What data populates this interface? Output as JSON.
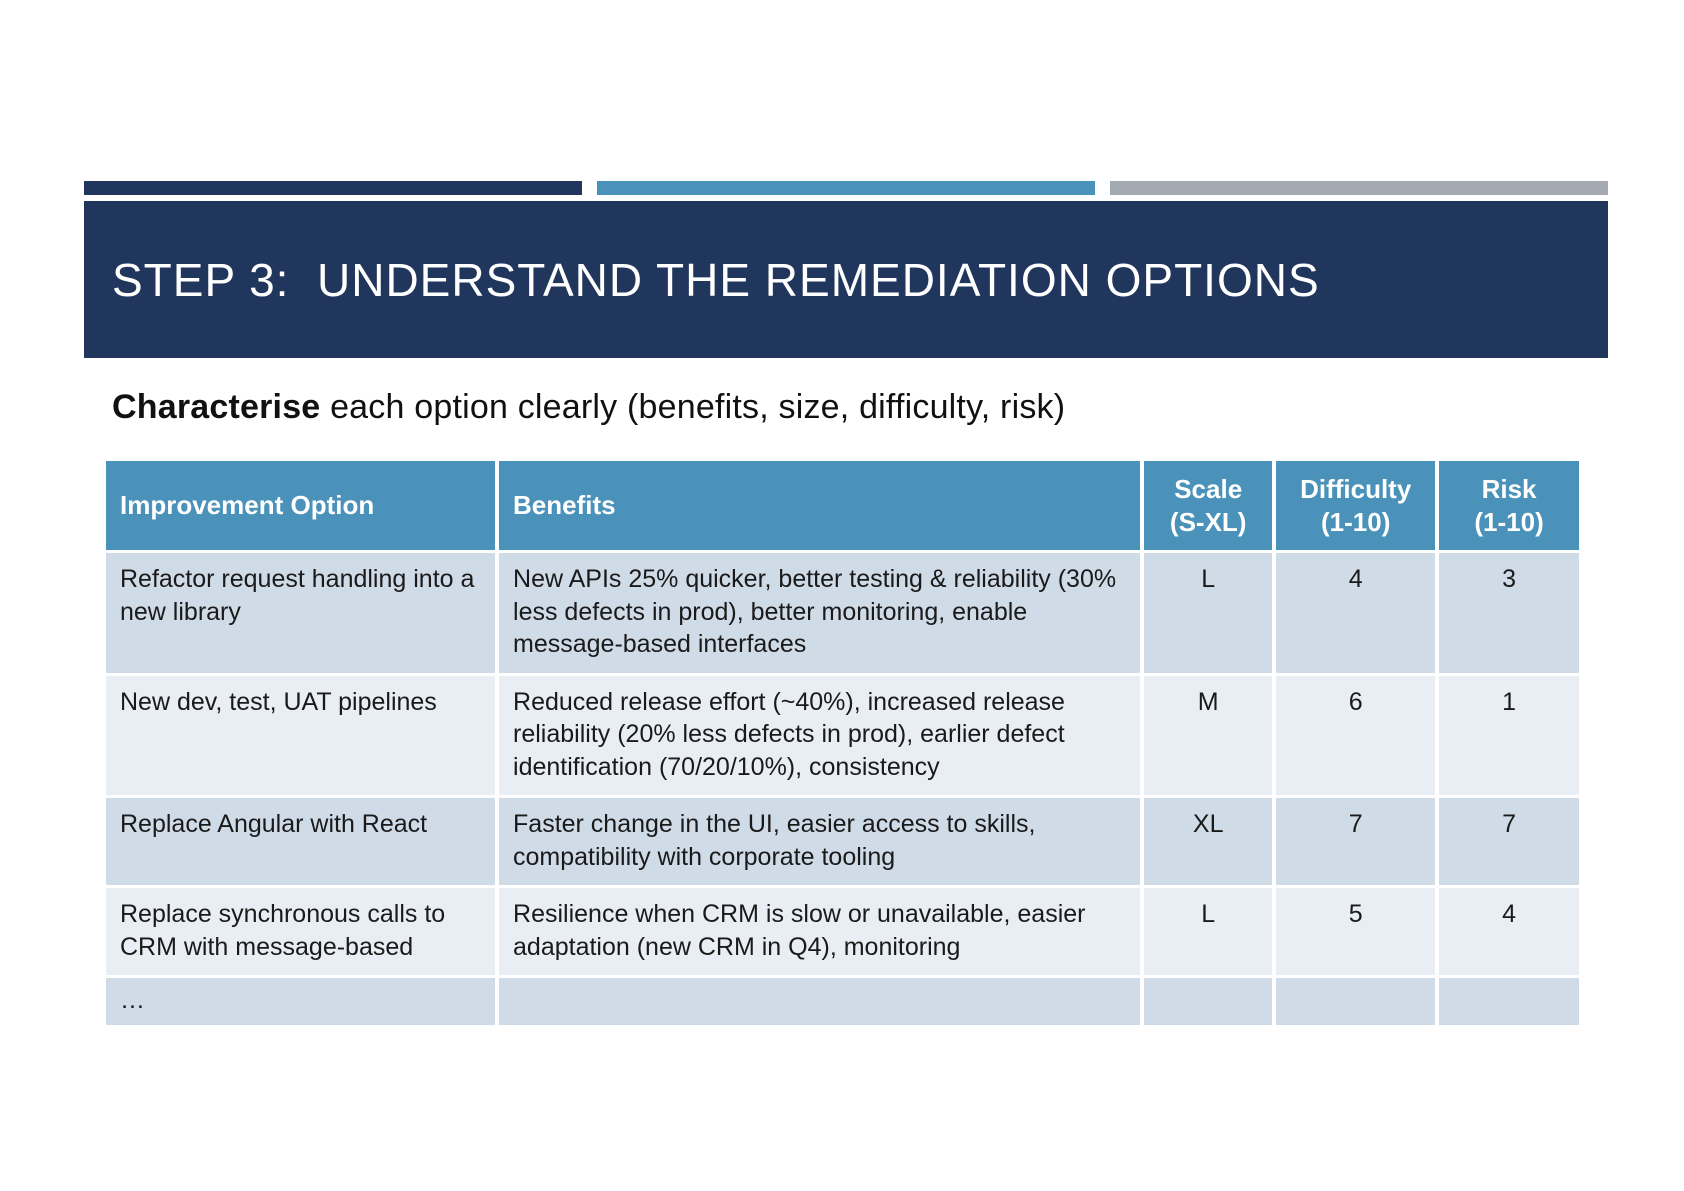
{
  "slide": {
    "title": "STEP 3:  UNDERSTAND THE REMEDIATION OPTIONS",
    "subtitle": {
      "keyword": "Characterise",
      "rest": " each option clearly (benefits, size, difficulty, risk)"
    }
  },
  "colors": {
    "accent_navy": "#20365C",
    "accent_steel_blue": "#4A92BA",
    "accent_gray": "#A3AAB2",
    "header_bg": "#4A92BA",
    "row_dark": "#D0DBE8",
    "row_light": "#E9EEF5",
    "title_text": "#FFFFFF",
    "body_text": "#1A1A1A"
  },
  "table": {
    "headers": [
      {
        "label": "Improvement Option",
        "sub": ""
      },
      {
        "label": "Benefits",
        "sub": ""
      },
      {
        "label": "Scale",
        "sub": "(S-XL)"
      },
      {
        "label": "Difficulty",
        "sub": "(1-10)"
      },
      {
        "label": "Risk",
        "sub": "(1-10)"
      }
    ],
    "rows": [
      {
        "option": "Refactor request handling into a new library",
        "benefits": "New APIs 25% quicker, better testing & reliability (30% less defects in prod), better monitoring, enable message-based interfaces",
        "scale": "L",
        "difficulty": "4",
        "risk": "3"
      },
      {
        "option": "New dev, test, UAT pipelines",
        "benefits": "Reduced release effort (~40%), increased release reliability (20% less defects in prod), earlier defect identification (70/20/10%), consistency",
        "scale": "M",
        "difficulty": "6",
        "risk": "1"
      },
      {
        "option": "Replace Angular with React",
        "benefits": "Faster change in the UI, easier access to skills, compatibility with corporate tooling",
        "scale": "XL",
        "difficulty": "7",
        "risk": "7"
      },
      {
        "option": "Replace synchronous calls to CRM with message-based",
        "benefits": "Resilience when CRM is slow or unavailable, easier adaptation (new CRM in Q4), monitoring",
        "scale": "L",
        "difficulty": "5",
        "risk": "4"
      },
      {
        "option": "…",
        "benefits": "",
        "scale": "",
        "difficulty": "",
        "risk": ""
      }
    ]
  }
}
